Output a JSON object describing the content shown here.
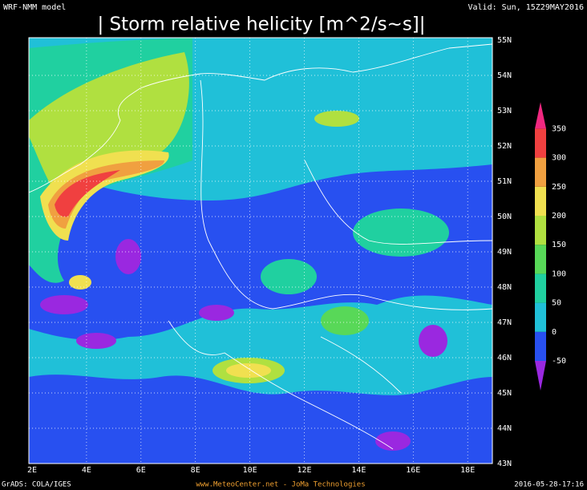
{
  "header": {
    "model": "WRF-NMM model",
    "title": "| Storm relative helicity [m^2/s~s]|",
    "valid": "Valid: Sun, 15Z29MAY2016"
  },
  "map": {
    "lat_labels": [
      "55N",
      "54N",
      "53N",
      "52N",
      "51N",
      "50N",
      "49N",
      "48N",
      "47N",
      "46N",
      "45N",
      "44N",
      "43N"
    ],
    "lon_labels": [
      "2E",
      "4E",
      "6E",
      "8E",
      "10E",
      "12E",
      "14E",
      "16E",
      "18E"
    ]
  },
  "colorbar": {
    "levels": [
      -50,
      0,
      50,
      100,
      150,
      200,
      250,
      300,
      350
    ],
    "colors": [
      "#9a28e0",
      "#2850f0",
      "#20c0d8",
      "#20d0a0",
      "#58d858",
      "#b0e040",
      "#f0e050",
      "#f0a040",
      "#f04040",
      "#f02880"
    ]
  },
  "footer": {
    "left": "GrADS: COLA/IGES",
    "center": "www.MeteoCenter.net  -  JoMa Technologies",
    "right": "2016-05-28-17:16"
  }
}
